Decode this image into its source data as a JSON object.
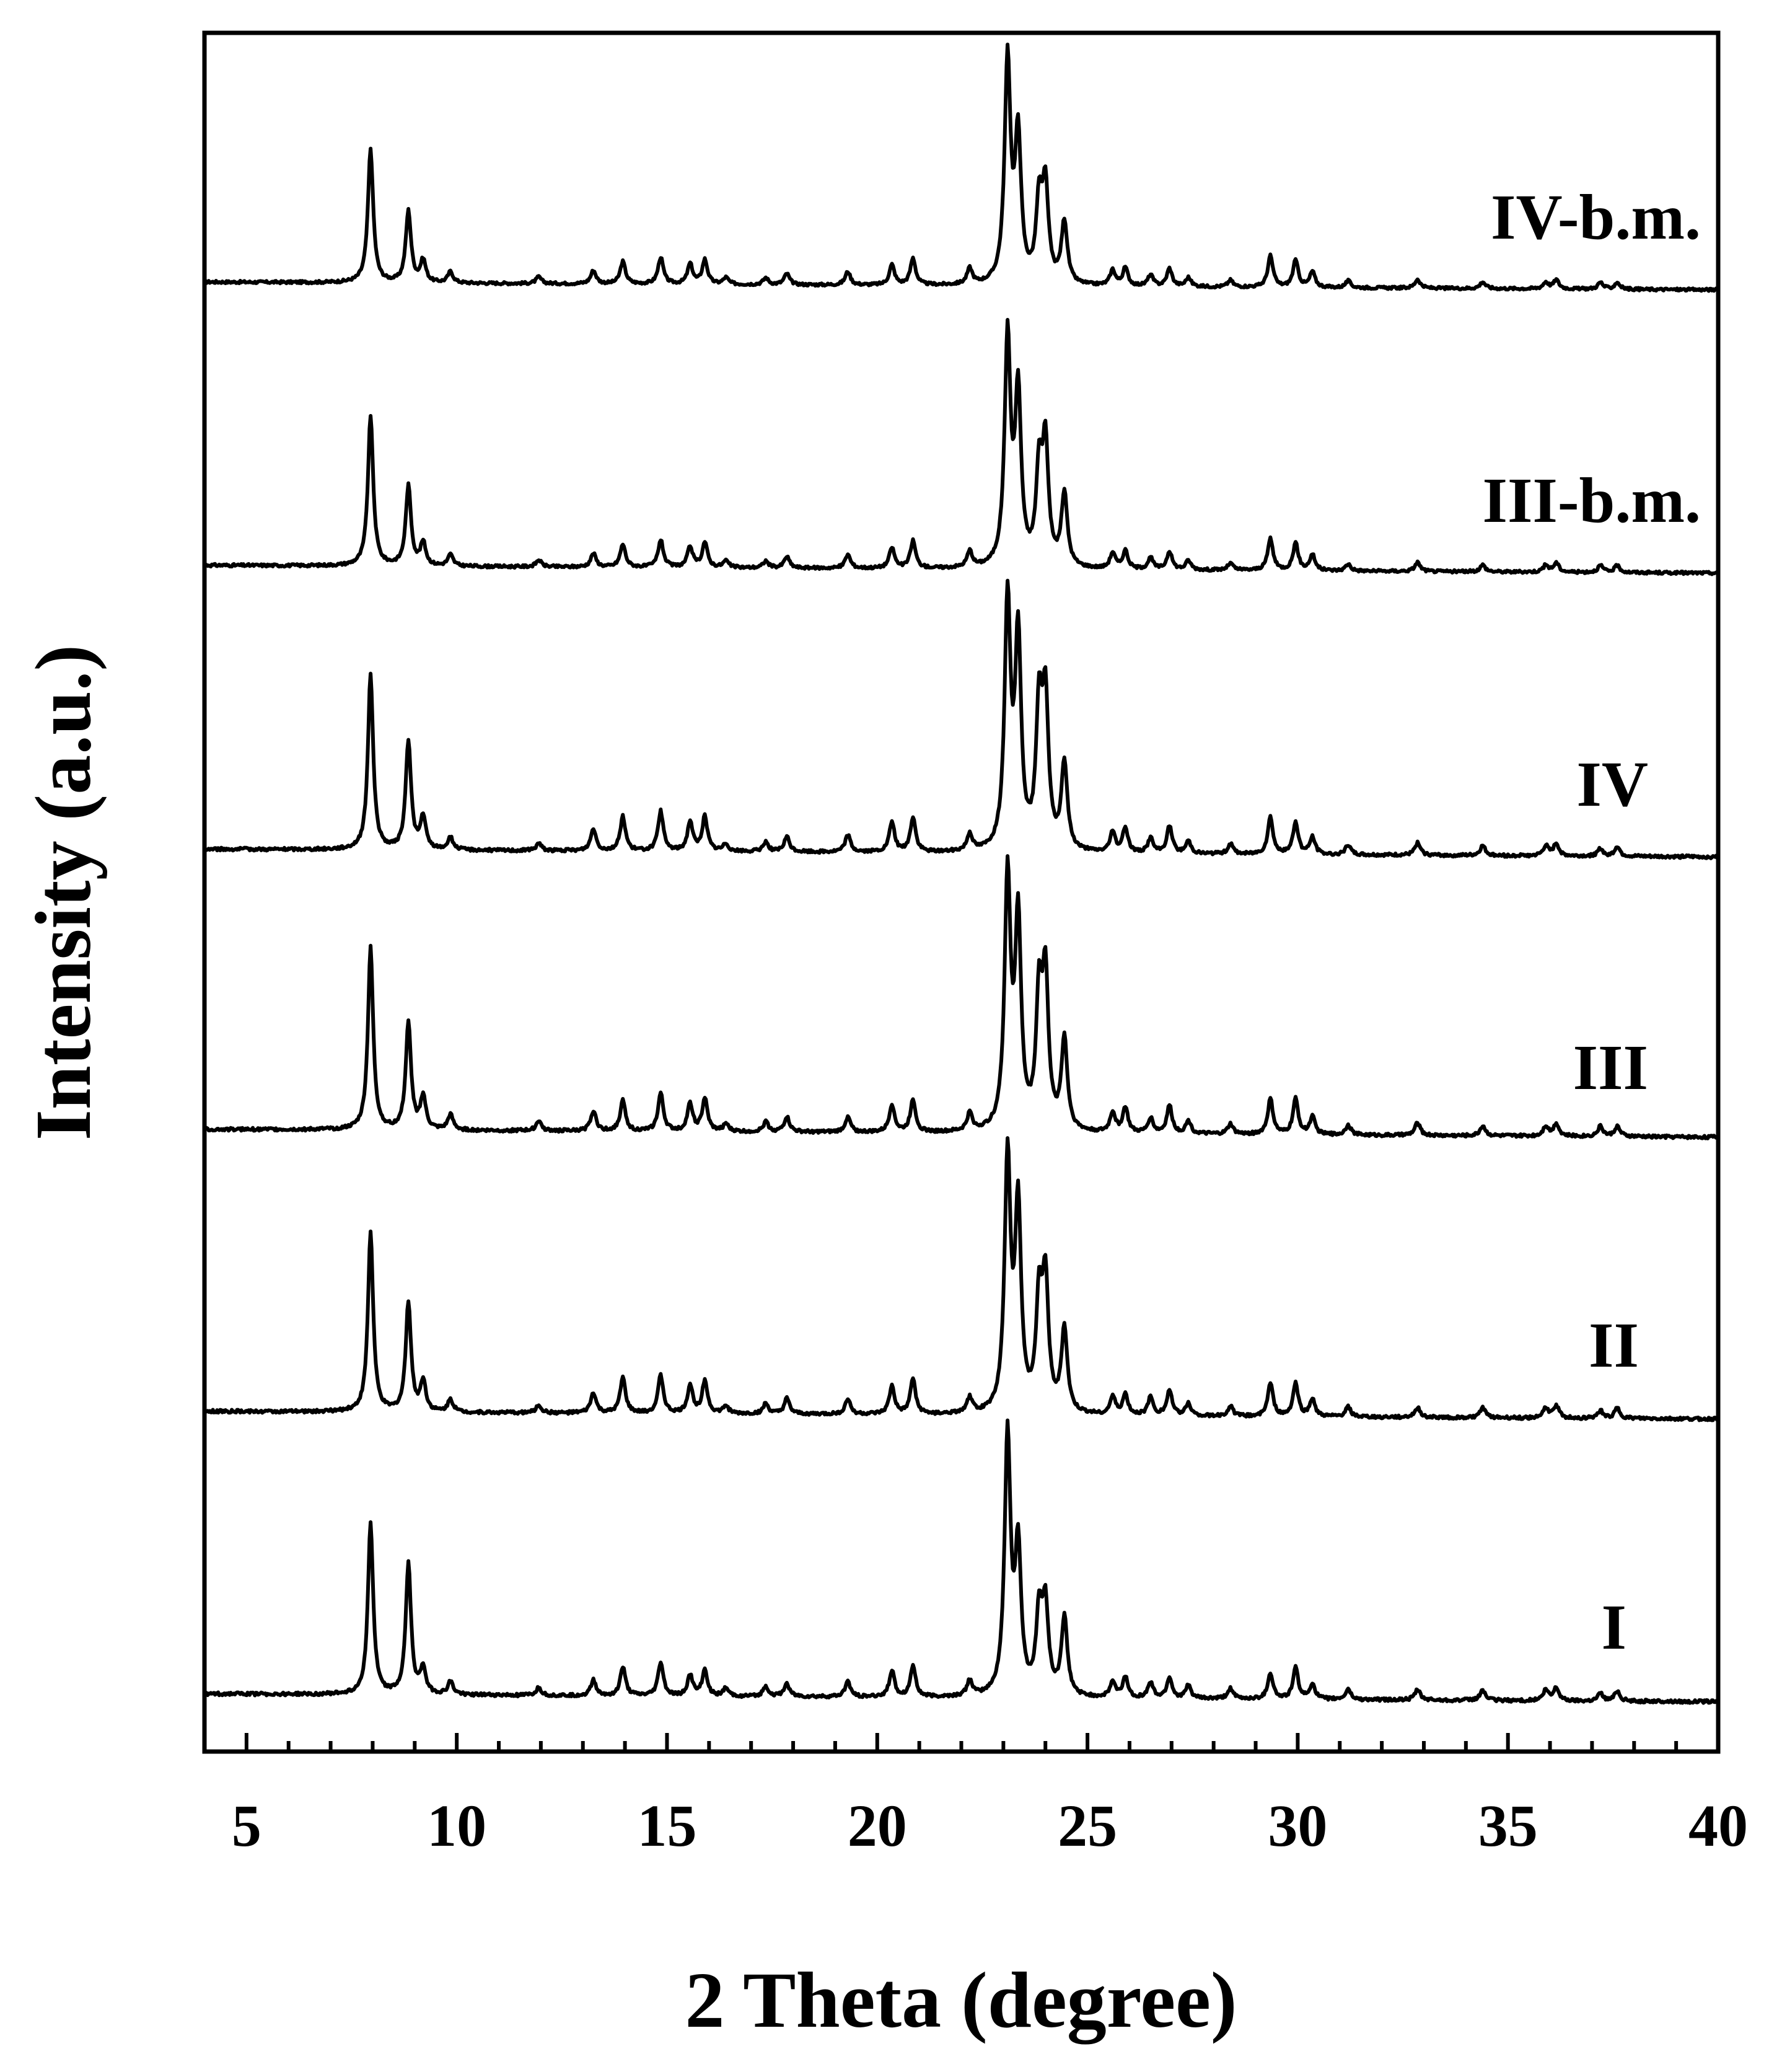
{
  "chart_data": {
    "type": "line",
    "xlabel": "2 Theta (degree)",
    "ylabel": "Intensity (a.u.)",
    "xlim": [
      4,
      40
    ],
    "x_ticks": [
      5,
      10,
      15,
      20,
      25,
      30,
      35,
      40
    ],
    "x_minor_step": 1,
    "y_ticks_shown": false,
    "grid": false,
    "legend": "none",
    "line_color": "#000000",
    "peaks_2theta": [
      7.95,
      8.85,
      9.2,
      9.85,
      11.95,
      13.25,
      13.95,
      14.85,
      15.55,
      15.9,
      16.4,
      17.35,
      17.85,
      19.3,
      20.35,
      20.85,
      22.2,
      23.1,
      23.35,
      23.85,
      24.0,
      24.45,
      25.6,
      25.9,
      26.5,
      26.95,
      27.4,
      28.4,
      29.35,
      29.95,
      30.35,
      31.2,
      32.85,
      34.4,
      35.9,
      36.15,
      37.2,
      37.6
    ],
    "series": [
      {
        "name": "IV-b.m.",
        "peak_heights": [
          0.6,
          0.32,
          0.1,
          0.05,
          0.03,
          0.06,
          0.1,
          0.12,
          0.09,
          0.11,
          0.03,
          0.03,
          0.05,
          0.06,
          0.09,
          0.12,
          0.07,
          1.0,
          0.65,
          0.35,
          0.42,
          0.28,
          0.07,
          0.08,
          0.05,
          0.08,
          0.04,
          0.03,
          0.14,
          0.12,
          0.07,
          0.03,
          0.04,
          0.03,
          0.03,
          0.04,
          0.03,
          0.03
        ]
      },
      {
        "name": "III-b.m.",
        "peak_heights": [
          0.66,
          0.35,
          0.1,
          0.05,
          0.03,
          0.06,
          0.1,
          0.12,
          0.09,
          0.11,
          0.03,
          0.03,
          0.05,
          0.06,
          0.09,
          0.12,
          0.07,
          1.0,
          0.75,
          0.4,
          0.52,
          0.32,
          0.07,
          0.08,
          0.05,
          0.08,
          0.04,
          0.03,
          0.14,
          0.12,
          0.07,
          0.03,
          0.04,
          0.03,
          0.03,
          0.04,
          0.03,
          0.03
        ]
      },
      {
        "name": "IV",
        "peak_heights": [
          0.71,
          0.44,
          0.13,
          0.05,
          0.03,
          0.09,
          0.14,
          0.16,
          0.12,
          0.14,
          0.03,
          0.04,
          0.06,
          0.07,
          0.12,
          0.14,
          0.07,
          1.0,
          0.85,
          0.55,
          0.58,
          0.35,
          0.08,
          0.1,
          0.06,
          0.11,
          0.05,
          0.04,
          0.15,
          0.13,
          0.07,
          0.04,
          0.05,
          0.04,
          0.04,
          0.05,
          0.03,
          0.04
        ]
      },
      {
        "name": "III",
        "peak_heights": [
          0.72,
          0.42,
          0.13,
          0.06,
          0.04,
          0.08,
          0.12,
          0.15,
          0.11,
          0.13,
          0.03,
          0.04,
          0.06,
          0.06,
          0.11,
          0.13,
          0.07,
          1.0,
          0.82,
          0.5,
          0.58,
          0.36,
          0.08,
          0.1,
          0.06,
          0.11,
          0.05,
          0.04,
          0.14,
          0.14,
          0.07,
          0.04,
          0.05,
          0.04,
          0.04,
          0.05,
          0.04,
          0.04
        ]
      },
      {
        "name": "II",
        "peak_heights": [
          0.71,
          0.43,
          0.12,
          0.05,
          0.03,
          0.08,
          0.14,
          0.15,
          0.11,
          0.13,
          0.03,
          0.04,
          0.06,
          0.06,
          0.11,
          0.14,
          0.06,
          1.0,
          0.8,
          0.42,
          0.5,
          0.33,
          0.07,
          0.08,
          0.07,
          0.1,
          0.05,
          0.04,
          0.13,
          0.13,
          0.07,
          0.04,
          0.04,
          0.04,
          0.04,
          0.05,
          0.03,
          0.04
        ]
      },
      {
        "name": "I",
        "peak_heights": [
          0.66,
          0.5,
          0.1,
          0.05,
          0.03,
          0.06,
          0.11,
          0.13,
          0.08,
          0.1,
          0.03,
          0.04,
          0.05,
          0.06,
          0.1,
          0.12,
          0.06,
          1.0,
          0.55,
          0.3,
          0.33,
          0.3,
          0.06,
          0.08,
          0.06,
          0.08,
          0.05,
          0.04,
          0.1,
          0.12,
          0.06,
          0.04,
          0.04,
          0.04,
          0.04,
          0.05,
          0.03,
          0.04
        ]
      }
    ]
  }
}
